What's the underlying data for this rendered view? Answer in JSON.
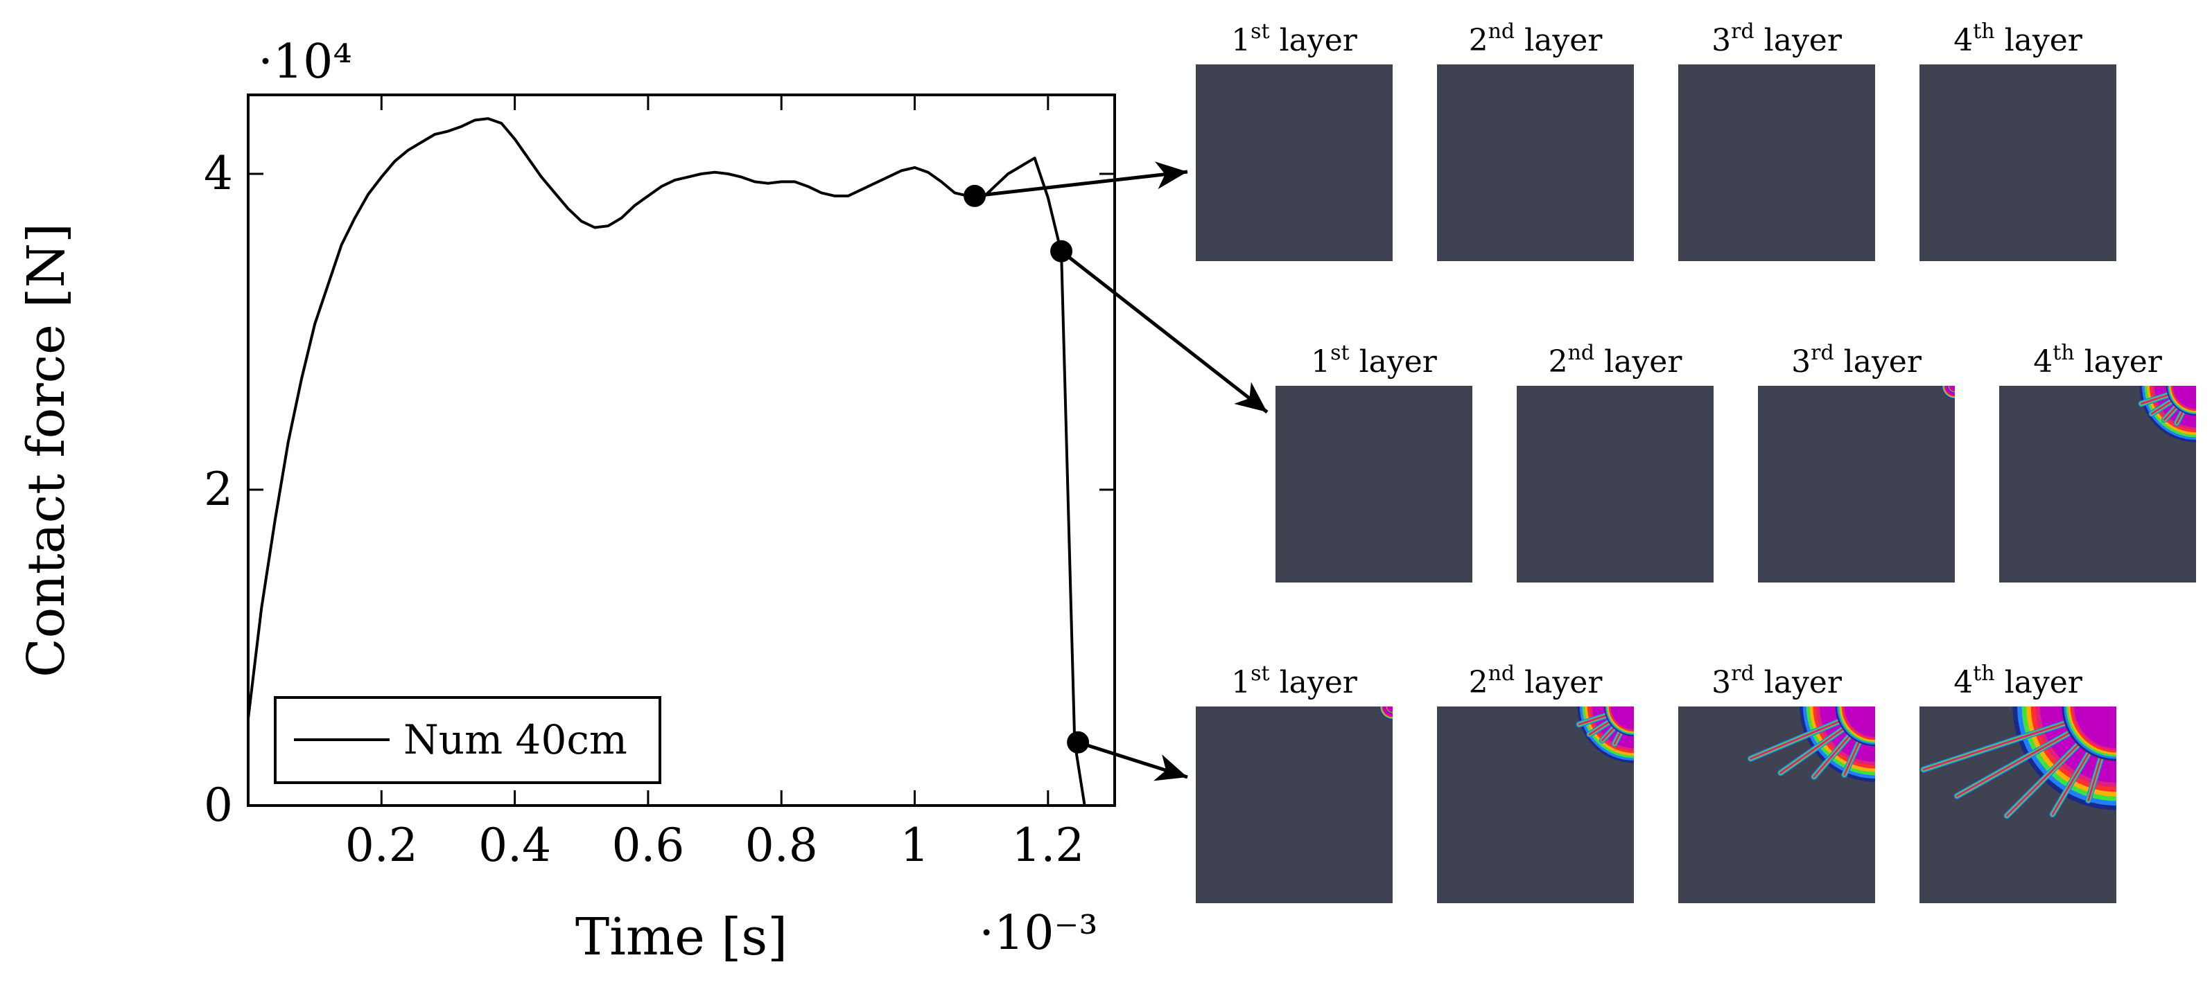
{
  "chart_data": {
    "type": "line",
    "title": "",
    "xlabel": "Time [s]",
    "ylabel": "Contact force [N]",
    "x_multiplier": "·10⁻³",
    "y_multiplier": "·10⁴",
    "xlim": [
      0,
      1.3
    ],
    "ylim": [
      0,
      4.5
    ],
    "x_ticks": [
      0.2,
      0.4,
      0.6,
      0.8,
      1.0,
      1.2
    ],
    "x_tick_labels": [
      "0.2",
      "0.4",
      "0.6",
      "0.8",
      "1",
      "1.2"
    ],
    "y_ticks": [
      0,
      2,
      4
    ],
    "y_tick_labels": [
      "0",
      "2",
      "4"
    ],
    "legend_position": "bottom-left",
    "series": [
      {
        "name": "Num 40cm",
        "color": "#000000",
        "x": [
          0.0,
          0.02,
          0.04,
          0.06,
          0.08,
          0.1,
          0.12,
          0.14,
          0.16,
          0.18,
          0.2,
          0.22,
          0.24,
          0.26,
          0.28,
          0.3,
          0.32,
          0.34,
          0.36,
          0.38,
          0.4,
          0.42,
          0.44,
          0.46,
          0.48,
          0.5,
          0.52,
          0.54,
          0.56,
          0.58,
          0.6,
          0.62,
          0.64,
          0.66,
          0.68,
          0.7,
          0.72,
          0.74,
          0.76,
          0.78,
          0.8,
          0.82,
          0.84,
          0.86,
          0.88,
          0.9,
          0.92,
          0.94,
          0.96,
          0.98,
          1.0,
          1.02,
          1.04,
          1.06,
          1.08,
          1.1,
          1.12,
          1.14,
          1.16,
          1.18,
          1.2,
          1.22,
          1.24,
          1.255
        ],
        "y": [
          0.55,
          1.25,
          1.8,
          2.3,
          2.7,
          3.05,
          3.3,
          3.55,
          3.72,
          3.87,
          3.98,
          4.08,
          4.15,
          4.2,
          4.25,
          4.27,
          4.3,
          4.34,
          4.35,
          4.32,
          4.22,
          4.1,
          3.98,
          3.88,
          3.78,
          3.7,
          3.66,
          3.67,
          3.72,
          3.8,
          3.86,
          3.92,
          3.96,
          3.98,
          4.0,
          4.01,
          4.0,
          3.98,
          3.95,
          3.94,
          3.95,
          3.95,
          3.92,
          3.88,
          3.86,
          3.86,
          3.9,
          3.94,
          3.98,
          4.02,
          4.04,
          4.01,
          3.95,
          3.88,
          3.86,
          3.84,
          3.92,
          4.0,
          4.05,
          4.1,
          3.85,
          3.5,
          0.4,
          0.0
        ],
        "markers": [
          {
            "x": 1.09,
            "y": 3.86
          },
          {
            "x": 1.22,
            "y": 3.51
          },
          {
            "x": 1.245,
            "y": 0.4
          }
        ]
      }
    ]
  },
  "snapshots": {
    "rows": [
      {
        "layers": [
          {
            "sup_base": "1",
            "sup": "st",
            "rest": " layer",
            "damage": 0
          },
          {
            "sup_base": "2",
            "sup": "nd",
            "rest": " layer",
            "damage": 0
          },
          {
            "sup_base": "3",
            "sup": "rd",
            "rest": " layer",
            "damage": 0
          },
          {
            "sup_base": "4",
            "sup": "th",
            "rest": " layer",
            "damage": 0
          }
        ]
      },
      {
        "layers": [
          {
            "sup_base": "1",
            "sup": "st",
            "rest": " layer",
            "damage": 0
          },
          {
            "sup_base": "2",
            "sup": "nd",
            "rest": " layer",
            "damage": 0
          },
          {
            "sup_base": "3",
            "sup": "rd",
            "rest": " layer",
            "damage": 1
          },
          {
            "sup_base": "4",
            "sup": "th",
            "rest": " layer",
            "damage": 2
          }
        ]
      },
      {
        "layers": [
          {
            "sup_base": "1",
            "sup": "st",
            "rest": " layer",
            "damage": 1
          },
          {
            "sup_base": "2",
            "sup": "nd",
            "rest": " layer",
            "damage": 2
          },
          {
            "sup_base": "3",
            "sup": "rd",
            "rest": " layer",
            "damage": 3
          },
          {
            "sup_base": "4",
            "sup": "th",
            "rest": " layer",
            "damage": 4
          }
        ]
      }
    ],
    "panel_color": "#3f4251",
    "damage_colors": [
      "#c000c0",
      "#e0207a",
      "#ff3030",
      "#ffb000",
      "#40e040",
      "#2080ff",
      "#1a2a8a"
    ]
  }
}
